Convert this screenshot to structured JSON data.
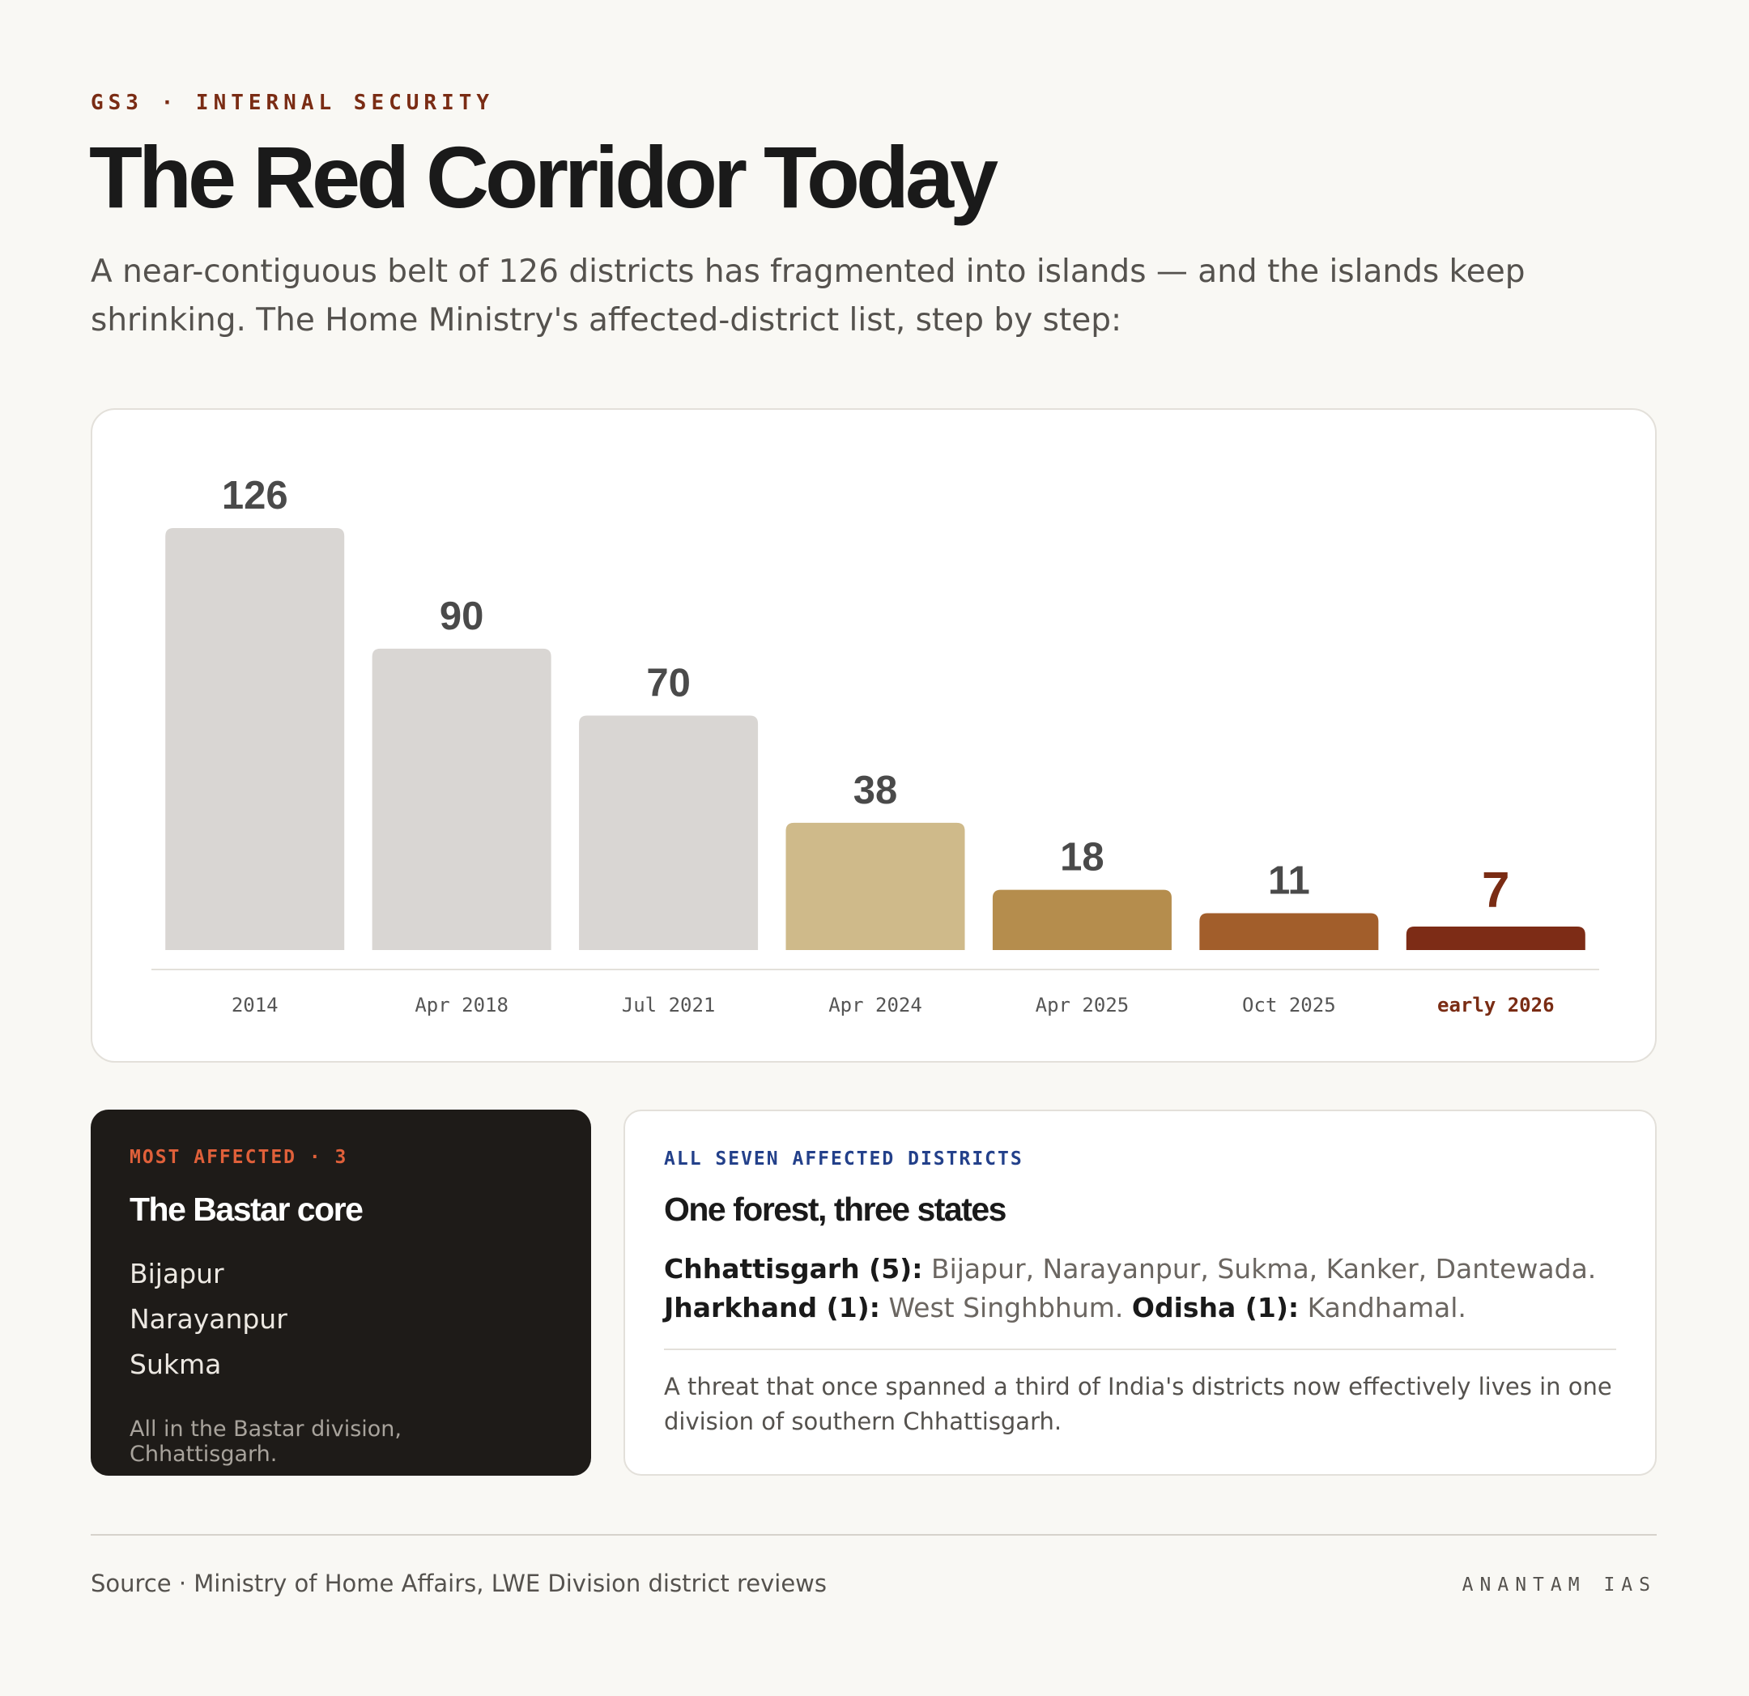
{
  "header": {
    "eyebrow": "GS3 · INTERNAL SECURITY",
    "title": "The Red Corridor Today",
    "subtitle": "A near-contiguous belt of 126 districts has fragmented into islands — and the islands keep shrinking. The Home Ministry's affected-district list, step by step:"
  },
  "chart_data": {
    "type": "bar",
    "categories": [
      "2014",
      "Apr 2018",
      "Jul 2021",
      "Apr 2024",
      "Apr 2025",
      "Oct 2025",
      "early 2026"
    ],
    "values": [
      126,
      90,
      70,
      38,
      18,
      11,
      7
    ],
    "title": "",
    "xlabel": "",
    "ylabel": "",
    "ylim": [
      0,
      126
    ],
    "grid": false,
    "legend": "none",
    "colors": [
      "#d9d6d3",
      "#d9d6d3",
      "#d9d6d3",
      "#cfba8a",
      "#b58d4d",
      "#a25e2b",
      "#7d2c16"
    ],
    "highlight_index": 6,
    "highlight_color": "#7a2c14",
    "label_color": "#4a4a4a",
    "tick_color": "#555555"
  },
  "most_affected": {
    "eyebrow": "MOST AFFECTED · 3",
    "title": "The Bastar core",
    "districts": [
      "Bijapur",
      "Narayanpur",
      "Sukma"
    ],
    "note": "All in the Bastar division, Chhattisgarh."
  },
  "all_seven": {
    "eyebrow": "ALL SEVEN AFFECTED DISTRICTS",
    "title": "One forest, three states",
    "states": [
      {
        "label": "Chhattisgarh (5):",
        "districts": "Bijapur, Narayanpur, Sukma, Kanker, Dantewada."
      },
      {
        "label": "Jharkhand (1):",
        "districts": "West Singhbhum."
      },
      {
        "label": "Odisha (1):",
        "districts": "Kandhamal."
      }
    ],
    "note": "A threat that once spanned a third of India's districts now effectively lives in one division of southern Chhattisgarh."
  },
  "footer": {
    "source": "Source · Ministry of Home Affairs, LWE Division district reviews",
    "brand": "ANANTAM IAS"
  }
}
